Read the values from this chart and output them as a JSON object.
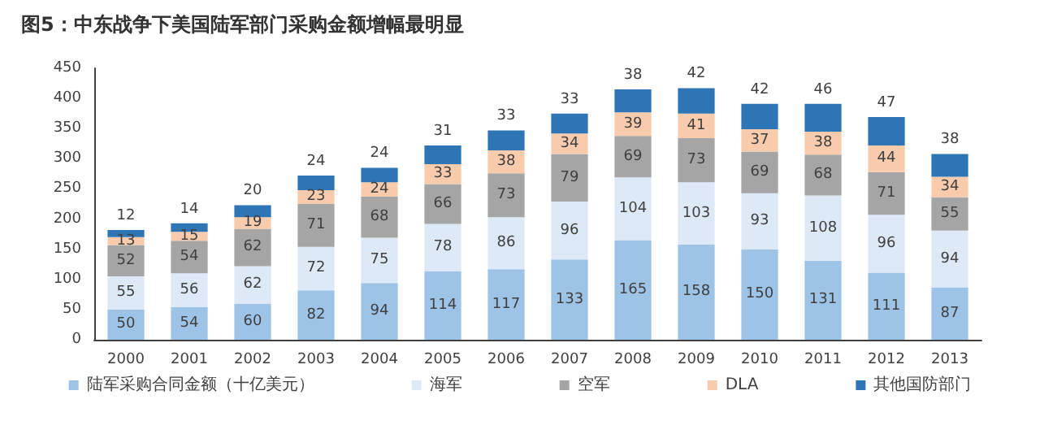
{
  "chart_data": {
    "type": "bar",
    "title": "图5：中东战争下美国陆军部门采购金额增幅最明显",
    "categories": [
      "2000",
      "2001",
      "2002",
      "2003",
      "2004",
      "2005",
      "2006",
      "2007",
      "2008",
      "2009",
      "2010",
      "2011",
      "2012",
      "2013"
    ],
    "series": [
      {
        "name": "陆军采购合同金额（十亿美元）",
        "color": "#9dc3e6",
        "values": [
          50,
          54,
          60,
          82,
          94,
          114,
          117,
          133,
          165,
          158,
          150,
          131,
          111,
          87
        ]
      },
      {
        "name": "海军",
        "color": "#dde9f6",
        "values": [
          55,
          56,
          62,
          72,
          75,
          78,
          86,
          96,
          104,
          103,
          93,
          108,
          96,
          94
        ]
      },
      {
        "name": "空军",
        "color": "#a5a5a5",
        "values": [
          52,
          54,
          62,
          71,
          68,
          66,
          73,
          79,
          69,
          73,
          69,
          68,
          71,
          55
        ]
      },
      {
        "name": "DLA",
        "color": "#f8cbad",
        "values": [
          13,
          15,
          19,
          23,
          24,
          33,
          38,
          34,
          39,
          41,
          37,
          38,
          44,
          34
        ]
      },
      {
        "name": "其他国防部门",
        "color": "#2e75b6",
        "values": [
          12,
          14,
          20,
          24,
          24,
          31,
          33,
          33,
          38,
          42,
          42,
          46,
          47,
          38
        ]
      }
    ],
    "stacked": true,
    "data_labels": true,
    "ylim": [
      0,
      450
    ],
    "yticks": [
      0,
      50,
      100,
      150,
      200,
      250,
      300,
      350,
      400,
      450
    ],
    "grid": false,
    "legend": "bottom"
  }
}
